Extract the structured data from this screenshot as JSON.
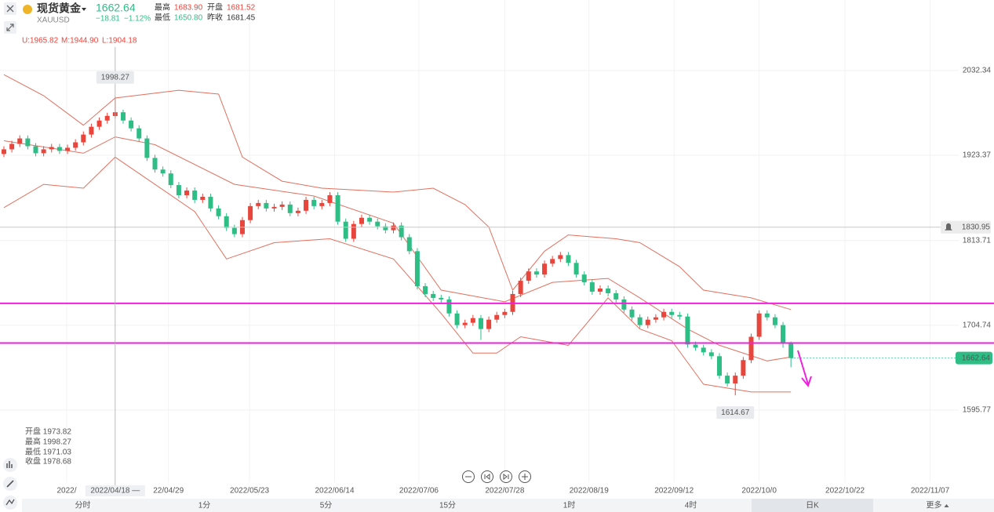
{
  "quote": {
    "name": "现货黄金",
    "symbol": "XAUUSD",
    "price": "1662.64",
    "change": "−18.81",
    "change_pct": "−1.12%",
    "stats": [
      {
        "label": "最高",
        "value": "1683.90"
      },
      {
        "label": "开盘",
        "value": "1681.52"
      },
      {
        "label": "最低",
        "value": "1650.80"
      },
      {
        "label": "昨收",
        "value": "1681.45"
      }
    ]
  },
  "indicator": [
    "U:1965.82",
    "M:1944.90",
    "L:1904.18"
  ],
  "crosshair_info": [
    "开盘 1973.82",
    "最高 1998.27",
    "最低 1971.03",
    "收盘 1978.68"
  ],
  "periods": [
    "分时",
    "1分",
    "5分",
    "15分",
    "1时",
    "4时",
    "日K",
    "更多"
  ],
  "selected_period": 6,
  "chart_data": {
    "type": "candlestick",
    "x": [
      0,
      1,
      2,
      3,
      4,
      5,
      6,
      7,
      8,
      9,
      10,
      11,
      12,
      13,
      14,
      15,
      16,
      17,
      18,
      19,
      20,
      21,
      22,
      23,
      24,
      25,
      26,
      27,
      28,
      29,
      30,
      31,
      32,
      33,
      34,
      35,
      36,
      37,
      38,
      39,
      40,
      41,
      42,
      43,
      44,
      45,
      46,
      47,
      48,
      49,
      50,
      51,
      52,
      53,
      54,
      55,
      56,
      57,
      58,
      59,
      60,
      61,
      62,
      63,
      64,
      65,
      66,
      67,
      68,
      69,
      70,
      71,
      72,
      73,
      74,
      75,
      76,
      77,
      78,
      79,
      80,
      81,
      82,
      83,
      84,
      85,
      86,
      87,
      88,
      89,
      90,
      91,
      92,
      93,
      94,
      95,
      96,
      97,
      98,
      99
    ],
    "open": [
      1925,
      1931,
      1938,
      1945,
      1935,
      1926,
      1931,
      1934,
      1929,
      1933,
      1940,
      1950,
      1960,
      1968,
      1973.82,
      1978.68,
      1968,
      1958,
      1945,
      1920,
      1905,
      1900,
      1885,
      1872,
      1878,
      1866,
      1870,
      1855,
      1845,
      1830,
      1822,
      1840,
      1858,
      1862,
      1855,
      1857,
      1860,
      1849,
      1852,
      1866,
      1858,
      1862,
      1872,
      1838,
      1816,
      1835,
      1843,
      1838,
      1832,
      1827,
      1833,
      1818,
      1800,
      1755,
      1745,
      1740,
      1738,
      1720,
      1705,
      1708,
      1714,
      1700,
      1712,
      1718,
      1722,
      1745,
      1762,
      1774,
      1770,
      1784,
      1790,
      1795,
      1785,
      1770,
      1760,
      1748,
      1752,
      1746,
      1738,
      1725,
      1715,
      1705,
      1712,
      1715,
      1722,
      1718,
      1716,
      1680,
      1676,
      1670,
      1665,
      1640,
      1630,
      1640,
      1660,
      1690,
      1720,
      1715,
      1705,
      1681.52
    ],
    "high": [
      1935,
      1942,
      1949,
      1949,
      1939,
      1935,
      1938,
      1938,
      1937,
      1944,
      1954,
      1964,
      1972,
      1978,
      1998.27,
      1982,
      1972,
      1962,
      1949,
      1924,
      1909,
      1904,
      1889,
      1882,
      1882,
      1874,
      1874,
      1859,
      1849,
      1834,
      1844,
      1862,
      1866,
      1866,
      1861,
      1864,
      1864,
      1856,
      1870,
      1870,
      1866,
      1876,
      1876,
      1842,
      1839,
      1847,
      1847,
      1842,
      1836,
      1837,
      1837,
      1822,
      1804,
      1759,
      1749,
      1744,
      1742,
      1724,
      1712,
      1718,
      1718,
      1716,
      1722,
      1726,
      1749,
      1766,
      1778,
      1778,
      1788,
      1794,
      1799,
      1799,
      1789,
      1774,
      1764,
      1756,
      1756,
      1750,
      1742,
      1729,
      1719,
      1716,
      1719,
      1726,
      1726,
      1722,
      1720,
      1684,
      1680,
      1674,
      1669,
      1644,
      1644,
      1664,
      1694,
      1724,
      1724,
      1719,
      1709,
      1683.9
    ],
    "low": [
      1921,
      1927,
      1934,
      1931,
      1922,
      1922,
      1927,
      1925,
      1925,
      1929,
      1936,
      1946,
      1956,
      1964,
      1971.03,
      1964,
      1954,
      1941,
      1916,
      1901,
      1896,
      1881,
      1868,
      1868,
      1862,
      1862,
      1851,
      1841,
      1826,
      1818,
      1818,
      1836,
      1854,
      1851,
      1851,
      1853,
      1845,
      1845,
      1848,
      1854,
      1854,
      1858,
      1834,
      1812,
      1812,
      1831,
      1834,
      1828,
      1823,
      1823,
      1814,
      1796,
      1751,
      1741,
      1736,
      1734,
      1716,
      1701,
      1701,
      1704,
      1686,
      1696,
      1708,
      1714,
      1718,
      1741,
      1758,
      1766,
      1766,
      1780,
      1786,
      1781,
      1766,
      1756,
      1744,
      1744,
      1742,
      1734,
      1721,
      1711,
      1701,
      1701,
      1708,
      1711,
      1714,
      1712,
      1676,
      1672,
      1666,
      1661,
      1636,
      1626,
      1614.67,
      1636,
      1656,
      1686,
      1711,
      1701,
      1676,
      1650.8
    ],
    "close": [
      1931,
      1938,
      1945,
      1935,
      1926,
      1931,
      1934,
      1929,
      1933,
      1940,
      1950,
      1960,
      1968,
      1974,
      1978.68,
      1968,
      1958,
      1945,
      1920,
      1905,
      1900,
      1885,
      1872,
      1878,
      1866,
      1870,
      1855,
      1845,
      1830,
      1822,
      1840,
      1858,
      1862,
      1855,
      1857,
      1860,
      1849,
      1852,
      1866,
      1858,
      1862,
      1872,
      1838,
      1816,
      1835,
      1843,
      1838,
      1832,
      1827,
      1833,
      1818,
      1800,
      1755,
      1745,
      1740,
      1738,
      1720,
      1705,
      1708,
      1714,
      1700,
      1712,
      1718,
      1722,
      1745,
      1762,
      1774,
      1770,
      1784,
      1790,
      1795,
      1785,
      1770,
      1760,
      1748,
      1752,
      1746,
      1738,
      1725,
      1715,
      1705,
      1712,
      1715,
      1722,
      1718,
      1716,
      1680,
      1676,
      1670,
      1665,
      1640,
      1630,
      1640,
      1660,
      1690,
      1720,
      1715,
      1705,
      1681.45,
      1662.64
    ],
    "up_color": "#e8453c",
    "down_color": "#2ebd85",
    "bands": [
      {
        "color": "#e2705f",
        "x": [
          0,
          5,
          10,
          14,
          22,
          27,
          30,
          35,
          40,
          49,
          54,
          58,
          61,
          64,
          68,
          71,
          77,
          80,
          85,
          88,
          94,
          99
        ],
        "values": [
          2027,
          2000,
          1962,
          1997,
          2007,
          2002,
          1921,
          1890,
          1881,
          1876,
          1881,
          1860,
          1831,
          1750,
          1800,
          1821,
          1816,
          1811,
          1780,
          1750,
          1740,
          1725
        ]
      },
      {
        "color": "#e2705f",
        "x": [
          0,
          10,
          14,
          19,
          29,
          39,
          49,
          55,
          63,
          69,
          76,
          80,
          86,
          90,
          96,
          99
        ],
        "values": [
          1942,
          1926,
          1947,
          1937,
          1886,
          1871,
          1836,
          1750,
          1735,
          1760,
          1765,
          1740,
          1700,
          1679,
          1659,
          1664
        ]
      },
      {
        "color": "#e2705f",
        "x": [
          0,
          5,
          10,
          14,
          24,
          28,
          34,
          41,
          49,
          55,
          59,
          62,
          65,
          71,
          76,
          80,
          84,
          88,
          94,
          99
        ],
        "values": [
          1856,
          1886,
          1881,
          1921,
          1851,
          1790,
          1811,
          1816,
          1790,
          1720,
          1669,
          1669,
          1690,
          1679,
          1740,
          1700,
          1685,
          1629,
          1619,
          1619
        ]
      }
    ],
    "hlines": [
      {
        "value": 1733,
        "color": "#ee22dd"
      },
      {
        "value": 1682,
        "color": "#ee22dd"
      }
    ],
    "alert_line": 1830.95,
    "crosshair": {
      "x": 14,
      "label": "2022/04/18 —"
    },
    "xlim": [
      -0.49,
      120.1
    ],
    "ylim": [
      1503,
      2123
    ],
    "yticks": [
      2032.34,
      1923.37,
      1813.71,
      1704.74,
      1595.77
    ],
    "xticks": [
      {
        "value": 7.9,
        "label": "2022/"
      },
      {
        "value": 20.7,
        "label": "22/04/29"
      },
      {
        "value": 30.9,
        "label": "2022/05/23"
      },
      {
        "value": 41.6,
        "label": "2022/06/14"
      },
      {
        "value": 52.2,
        "label": "2022/07/06"
      },
      {
        "value": 63.0,
        "label": "2022/07/28"
      },
      {
        "value": 73.6,
        "label": "2022/08/19"
      },
      {
        "value": 84.3,
        "label": "2022/09/12"
      },
      {
        "value": 95.0,
        "label": "2022/10/0"
      },
      {
        "value": 105.8,
        "label": "2022/10/22"
      },
      {
        "value": 116.5,
        "label": "2022/11/07"
      }
    ],
    "grid": true
  }
}
